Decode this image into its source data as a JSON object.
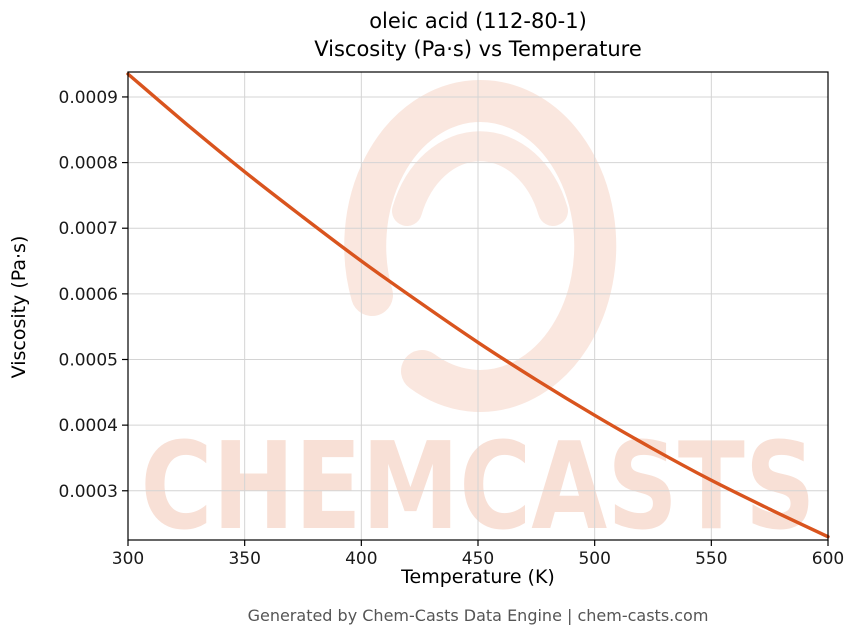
{
  "chart_data": {
    "type": "line",
    "title": "oleic acid (112-80-1)",
    "subtitle": "Viscosity (Pa·s) vs Temperature",
    "xlabel": "Temperature (K)",
    "ylabel": "Viscosity (Pa·s)",
    "x": [
      300,
      325,
      350,
      375,
      400,
      425,
      450,
      475,
      500,
      525,
      550,
      575,
      600
    ],
    "y": [
      0.000935,
      0.000859,
      0.000786,
      0.000717,
      0.00065,
      0.000587,
      0.000526,
      0.000469,
      0.000415,
      0.000364,
      0.000316,
      0.000272,
      0.00023
    ],
    "xlim": [
      300,
      600
    ],
    "ylim": [
      0.000225,
      0.000938
    ],
    "xticks": [
      300,
      350,
      400,
      450,
      500,
      550,
      600
    ],
    "xtick_labels": [
      "300",
      "350",
      "400",
      "450",
      "500",
      "550",
      "600"
    ],
    "yticks": [
      0.0003,
      0.0004,
      0.0005,
      0.0006,
      0.0007,
      0.0008,
      0.0009
    ],
    "ytick_labels": [
      "0.0003",
      "0.0004",
      "0.0005",
      "0.0006",
      "0.0007",
      "0.0008",
      "0.0009"
    ],
    "grid": true,
    "legend_position": "none",
    "line_color": "#d9541e",
    "grid_color": "#d4d4d4",
    "axis_color": "#000000",
    "tick_label_color": "#1a1a1a",
    "watermark_text": "CHEMCASTS",
    "watermark_color": "#d9541e"
  },
  "footer": {
    "credit": "Generated by Chem-Casts Data Engine | chem-casts.com"
  }
}
